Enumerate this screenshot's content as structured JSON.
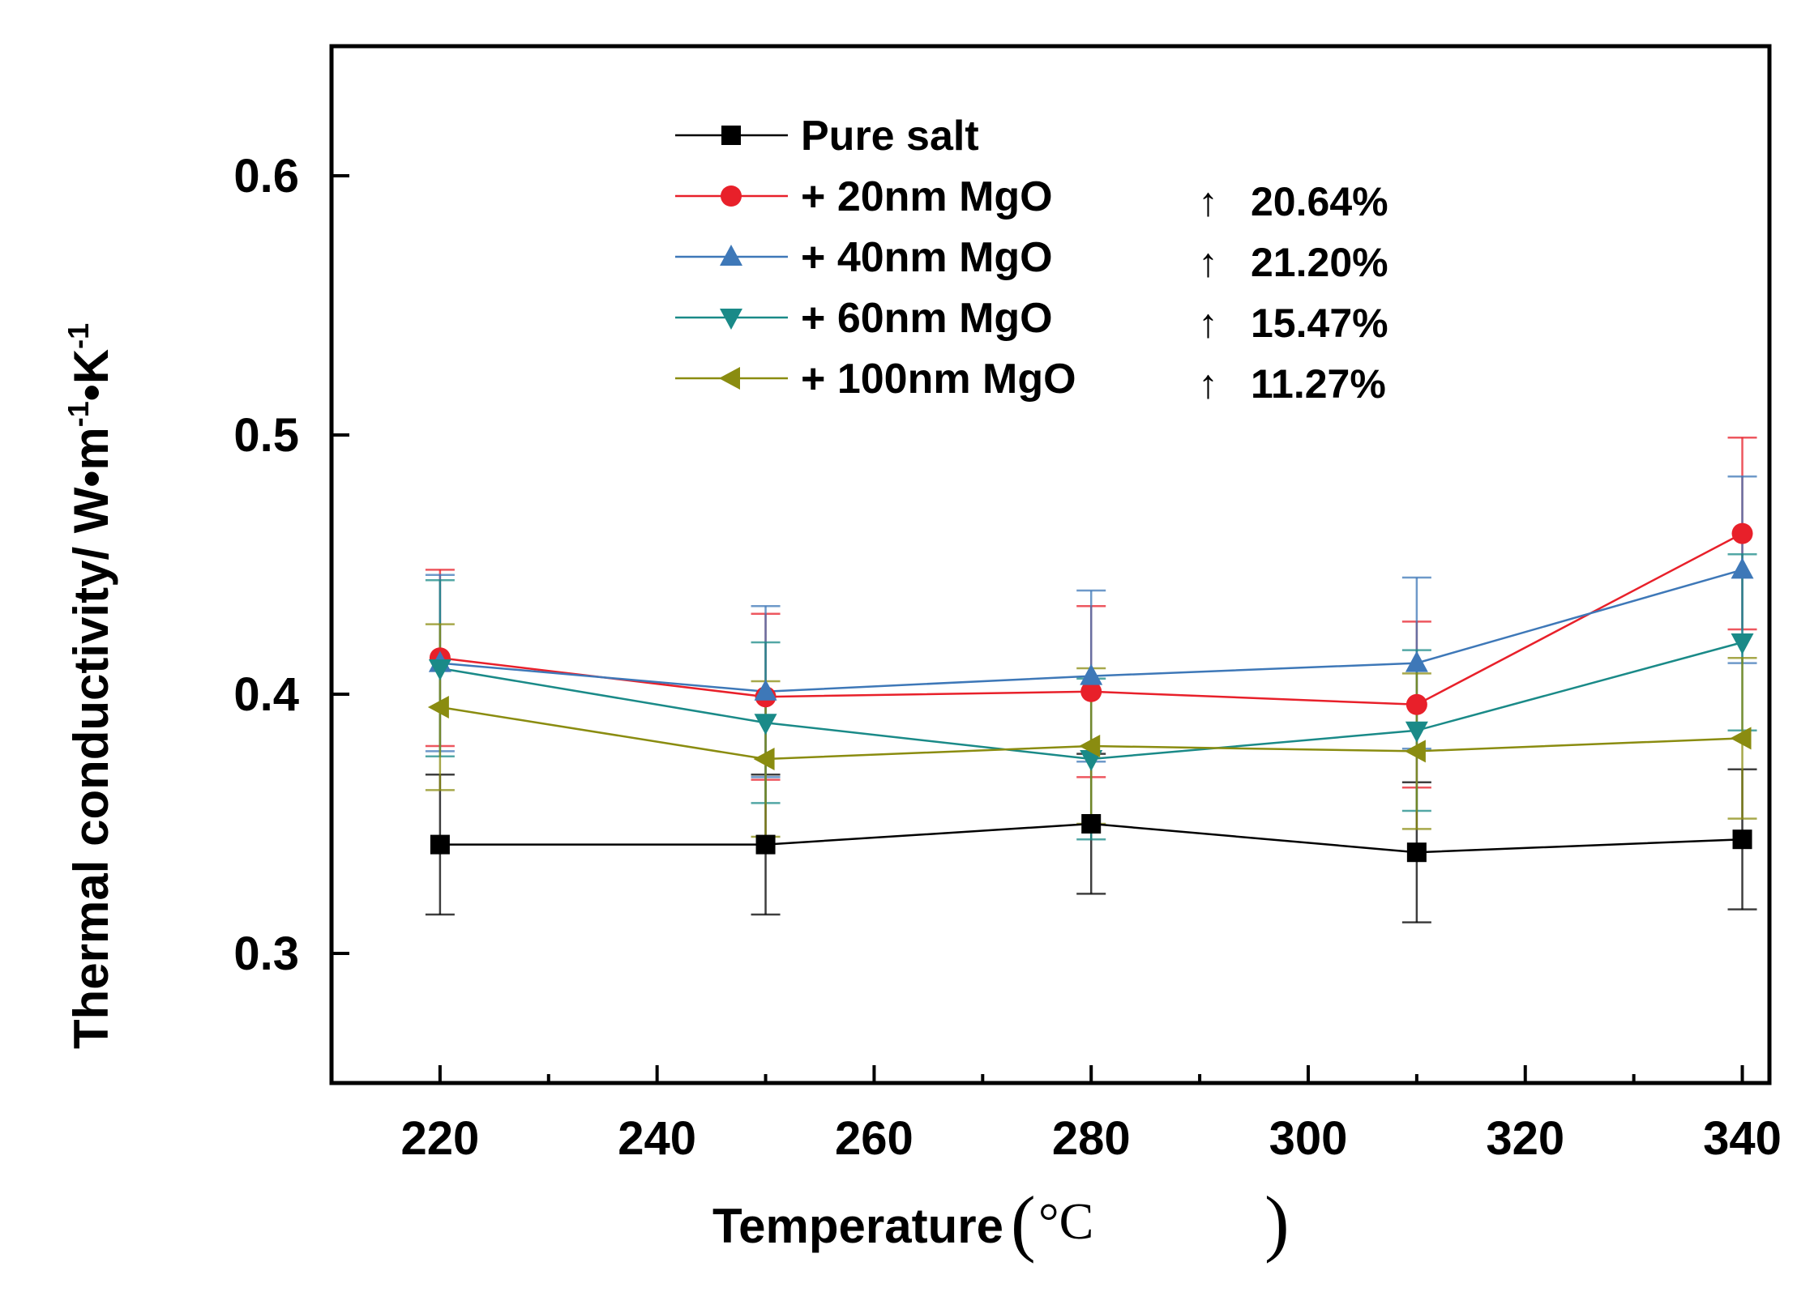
{
  "chart_data": {
    "type": "line",
    "title": "",
    "xlabel": "Temperature",
    "xlabel_unit": "°C",
    "ylabel": "Thermal conductivity/ W•m⁻¹•K⁻¹",
    "ylabel_parts": {
      "main": "Thermal conductivity/ W•m",
      "exp1": "-1",
      "mid": "•K",
      "exp2": "-1"
    },
    "xlim": [
      210,
      342.5
    ],
    "ylim": [
      0.25,
      0.65
    ],
    "x_ticks": [
      220,
      240,
      260,
      280,
      300,
      320,
      340
    ],
    "x_tick_labels": [
      "220",
      "240",
      "260",
      "280",
      "300",
      "320",
      "340"
    ],
    "y_ticks": [
      0.3,
      0.4,
      0.5,
      0.6
    ],
    "y_tick_labels": [
      "0.3",
      "0.4",
      "0.5",
      "0.6"
    ],
    "x": [
      220,
      250,
      280,
      310,
      340
    ],
    "legend_position": "top-center",
    "series": [
      {
        "name": "Pure salt",
        "color": "#000000",
        "marker": "square",
        "values": [
          0.342,
          0.342,
          0.35,
          0.339,
          0.344
        ],
        "errors": [
          0.027,
          0.027,
          0.027,
          0.027,
          0.027
        ],
        "increase_label": ""
      },
      {
        "name": "+ 20nm MgO",
        "color": "#e8202a",
        "marker": "circle",
        "values": [
          0.414,
          0.399,
          0.401,
          0.396,
          0.462
        ],
        "errors": [
          0.034,
          0.032,
          0.033,
          0.032,
          0.037
        ],
        "increase_label": "20.64%"
      },
      {
        "name": "+ 40nm MgO",
        "color": "#3e78b8",
        "marker": "triangle-up",
        "values": [
          0.412,
          0.401,
          0.407,
          0.412,
          0.448
        ],
        "errors": [
          0.034,
          0.033,
          0.033,
          0.033,
          0.036
        ],
        "increase_label": "21.20%"
      },
      {
        "name": "+ 60nm MgO",
        "color": "#1a8a88",
        "marker": "triangle-down",
        "values": [
          0.41,
          0.389,
          0.375,
          0.386,
          0.42
        ],
        "errors": [
          0.034,
          0.031,
          0.031,
          0.031,
          0.034
        ],
        "increase_label": "15.47%"
      },
      {
        "name": "+ 100nm MgO",
        "color": "#8a8c10",
        "marker": "triangle-left",
        "values": [
          0.395,
          0.375,
          0.38,
          0.378,
          0.383
        ],
        "errors": [
          0.032,
          0.03,
          0.03,
          0.03,
          0.031
        ],
        "increase_label": "11.27%"
      }
    ],
    "increase_arrow": "↑"
  }
}
